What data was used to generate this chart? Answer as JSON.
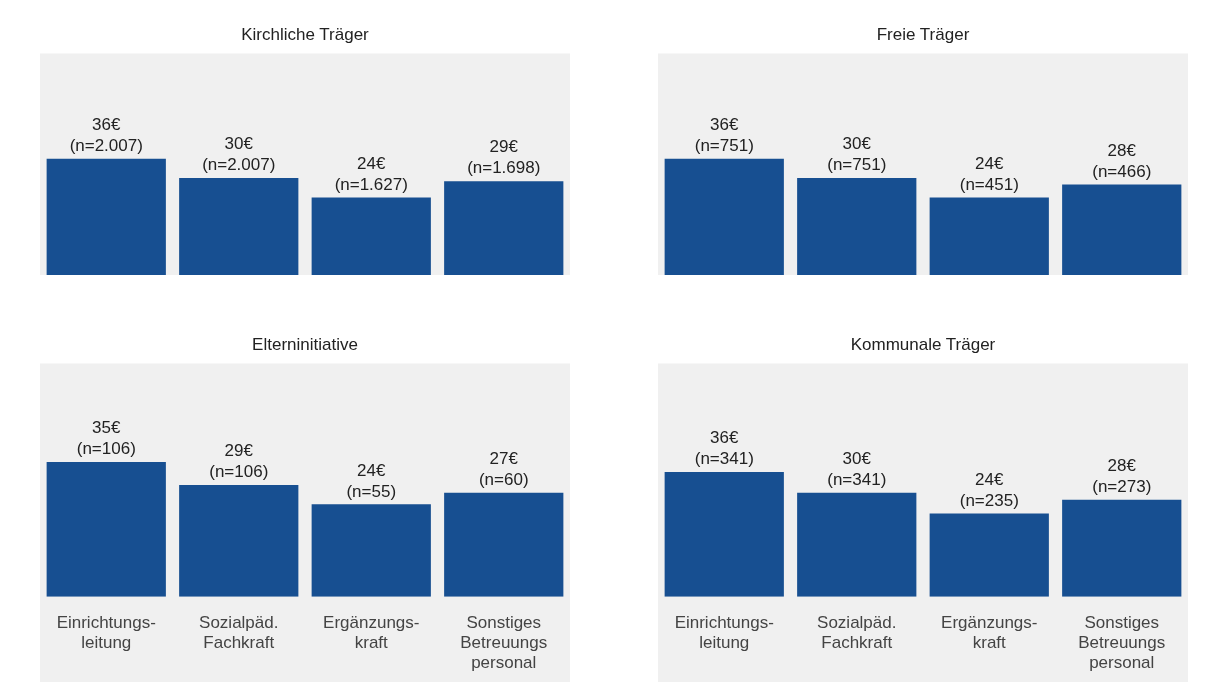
{
  "chart_data": [
    {
      "type": "bar",
      "title": "Kirchliche Träger",
      "categories": [
        null,
        null,
        null,
        null
      ],
      "values": [
        36,
        30,
        24,
        29
      ],
      "value_labels": [
        "36€ (n=2.007)",
        "30€ (n=2.007)",
        "24€ (n=1.627)",
        "29€ (n=1.698)"
      ],
      "color": "#174f91",
      "tick_labels": false,
      "grid": false,
      "legend": false
    },
    {
      "type": "bar",
      "title": "Freie Träger",
      "categories": [
        null,
        null,
        null,
        null
      ],
      "values": [
        36,
        30,
        24,
        28
      ],
      "value_labels": [
        "36€ (n=751)",
        "30€ (n=751)",
        "24€ (n=451)",
        "28€ (n=466)"
      ],
      "color": "#174f91",
      "tick_labels": false,
      "grid": false,
      "legend": false
    },
    {
      "type": "bar",
      "title": "Elterninitiative",
      "categories": [
        "Einrichtungs-leitung",
        "Sozialpäd. Fachkraft",
        "Ergänzungs-kraft",
        "Sonstiges Betreuungs personal"
      ],
      "values": [
        35,
        29,
        24,
        27
      ],
      "value_labels": [
        "35€ (n=106)",
        "29€ (n=106)",
        "24€ (n=55)",
        "27€ (n=60)"
      ],
      "color": "#174f91",
      "tick_labels": "x",
      "grid": false,
      "legend": false
    },
    {
      "type": "bar",
      "title": "Kommunale Träger",
      "categories": [
        "Einrichtungs-leitung",
        "Sozialpäd. Fachkraft",
        "Ergänzungs-kraft",
        "Sonstiges Betreuungs personal"
      ],
      "values": [
        36,
        30,
        24,
        28
      ],
      "value_labels": [
        "36€ (n=341)",
        "30€ (n=341)",
        "24€ (n=235)",
        "28€ (n=273)"
      ],
      "color": "#174f91",
      "tick_labels": "x",
      "grid": false,
      "legend": false
    }
  ]
}
